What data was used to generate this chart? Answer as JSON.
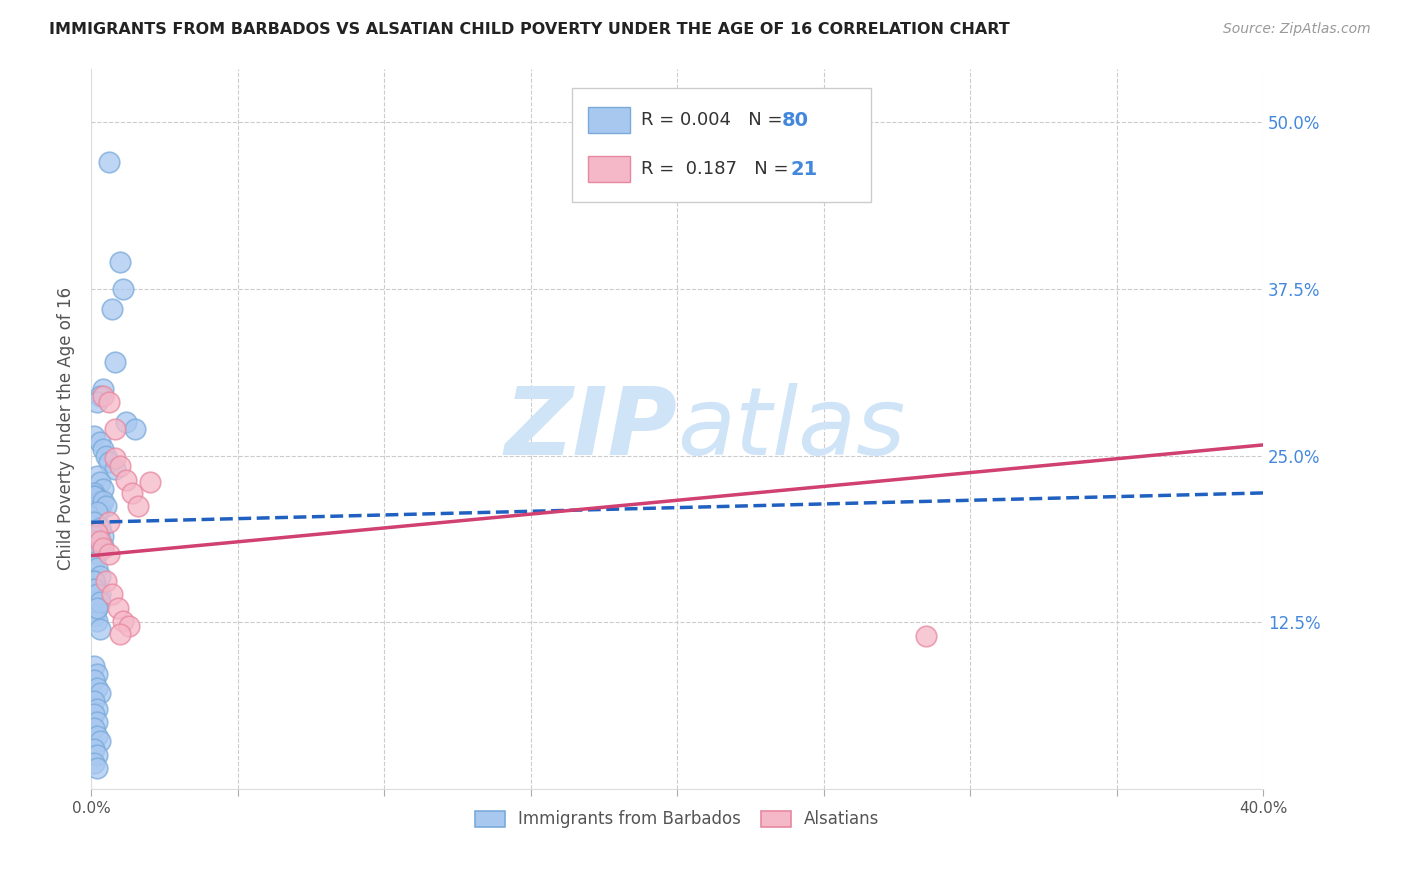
{
  "title": "IMMIGRANTS FROM BARBADOS VS ALSATIAN CHILD POVERTY UNDER THE AGE OF 16 CORRELATION CHART",
  "source": "Source: ZipAtlas.com",
  "ylabel": "Child Poverty Under the Age of 16",
  "xlim": [
    0.0,
    0.4
  ],
  "ylim": [
    0.0,
    0.54
  ],
  "yticks": [
    0.0,
    0.125,
    0.25,
    0.375,
    0.5
  ],
  "ytick_labels": [
    "",
    "12.5%",
    "25.0%",
    "37.5%",
    "50.0%"
  ],
  "xticks": [
    0.0,
    0.05,
    0.1,
    0.15,
    0.2,
    0.25,
    0.3,
    0.35,
    0.4
  ],
  "xtick_labels": [
    "0.0%",
    "",
    "",
    "",
    "",
    "",
    "",
    "",
    "40.0%"
  ],
  "blue_color": "#a8c8f0",
  "blue_edge_color": "#7aaada",
  "pink_color": "#f5b8c8",
  "pink_edge_color": "#e888a0",
  "blue_line_color": "#2060c0",
  "pink_line_color": "#d04070",
  "right_axis_color": "#4488dd",
  "watermark_color": "#d0e4f8",
  "blue_scatter_x": [
    0.006,
    0.01,
    0.011,
    0.007,
    0.008,
    0.004,
    0.003,
    0.002,
    0.012,
    0.015,
    0.001,
    0.003,
    0.004,
    0.005,
    0.006,
    0.008,
    0.002,
    0.003,
    0.004,
    0.001,
    0.002,
    0.003,
    0.001,
    0.002,
    0.003,
    0.004,
    0.001,
    0.002,
    0.003,
    0.002,
    0.001,
    0.002,
    0.003,
    0.004,
    0.002,
    0.001,
    0.003,
    0.002,
    0.001,
    0.004,
    0.005,
    0.002,
    0.001,
    0.003,
    0.002,
    0.001,
    0.003,
    0.002,
    0.001,
    0.002,
    0.003,
    0.001,
    0.002,
    0.003,
    0.001,
    0.002,
    0.001,
    0.002,
    0.003,
    0.001,
    0.001,
    0.002,
    0.003,
    0.002,
    0.001,
    0.002,
    0.001,
    0.002,
    0.003,
    0.001,
    0.002,
    0.001,
    0.002,
    0.001,
    0.002,
    0.003,
    0.001,
    0.002,
    0.001,
    0.002
  ],
  "blue_scatter_y": [
    0.47,
    0.395,
    0.375,
    0.36,
    0.32,
    0.3,
    0.295,
    0.29,
    0.275,
    0.27,
    0.265,
    0.26,
    0.255,
    0.25,
    0.245,
    0.24,
    0.235,
    0.23,
    0.225,
    0.22,
    0.215,
    0.21,
    0.205,
    0.2,
    0.195,
    0.19,
    0.222,
    0.218,
    0.212,
    0.208,
    0.2,
    0.192,
    0.185,
    0.182,
    0.178,
    0.22,
    0.216,
    0.212,
    0.22,
    0.216,
    0.212,
    0.208,
    0.2,
    0.196,
    0.19,
    0.186,
    0.18,
    0.176,
    0.17,
    0.166,
    0.16,
    0.156,
    0.15,
    0.146,
    0.14,
    0.136,
    0.13,
    0.126,
    0.12,
    0.156,
    0.15,
    0.146,
    0.14,
    0.136,
    0.092,
    0.086,
    0.082,
    0.076,
    0.072,
    0.066,
    0.06,
    0.056,
    0.05,
    0.046,
    0.04,
    0.036,
    0.03,
    0.026,
    0.02,
    0.016
  ],
  "pink_scatter_x": [
    0.004,
    0.006,
    0.008,
    0.01,
    0.012,
    0.014,
    0.016,
    0.02,
    0.008,
    0.006,
    0.005,
    0.007,
    0.009,
    0.011,
    0.013,
    0.01,
    0.002,
    0.003,
    0.004,
    0.006,
    0.285
  ],
  "pink_scatter_y": [
    0.295,
    0.29,
    0.248,
    0.242,
    0.232,
    0.222,
    0.212,
    0.23,
    0.27,
    0.2,
    0.156,
    0.146,
    0.136,
    0.126,
    0.122,
    0.116,
    0.192,
    0.186,
    0.181,
    0.176,
    0.115
  ],
  "blue_trend_x": [
    0.0,
    0.4
  ],
  "blue_trend_y": [
    0.2,
    0.222
  ],
  "pink_trend_x": [
    0.0,
    0.4
  ],
  "pink_trend_y": [
    0.175,
    0.258
  ]
}
